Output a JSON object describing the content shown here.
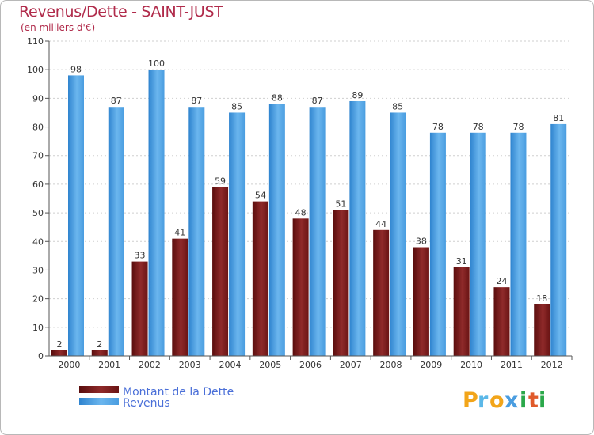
{
  "title": "Revenus/Dette - SAINT-JUST",
  "subtitle": "(en milliers d'€)",
  "chart_data": {
    "type": "bar",
    "categories": [
      "2000",
      "2001",
      "2002",
      "2003",
      "2004",
      "2005",
      "2006",
      "2007",
      "2008",
      "2009",
      "2010",
      "2011",
      "2012"
    ],
    "series": [
      {
        "name": "Montant de la Dette",
        "color": "#7a1a1a",
        "values": [
          2,
          2,
          33,
          41,
          59,
          54,
          48,
          51,
          44,
          38,
          31,
          24,
          18
        ]
      },
      {
        "name": "Revenus",
        "color": "#4a9de0",
        "values": [
          98,
          87,
          100,
          87,
          85,
          88,
          87,
          89,
          85,
          78,
          78,
          78,
          81
        ]
      }
    ],
    "ylim": [
      0,
      110
    ],
    "yticks": [
      0,
      10,
      20,
      30,
      40,
      50,
      60,
      70,
      80,
      90,
      100,
      110
    ],
    "grid": true,
    "legend_position": "bottom-left"
  },
  "logo": {
    "letters": [
      "P",
      "r",
      "o",
      "x",
      "i",
      "t",
      "i"
    ],
    "colors": [
      "#f2a51a",
      "#5bb8e8",
      "#f2a51a",
      "#4a9de0",
      "#2ba84a",
      "#e05a2b",
      "#2ba84a"
    ]
  }
}
